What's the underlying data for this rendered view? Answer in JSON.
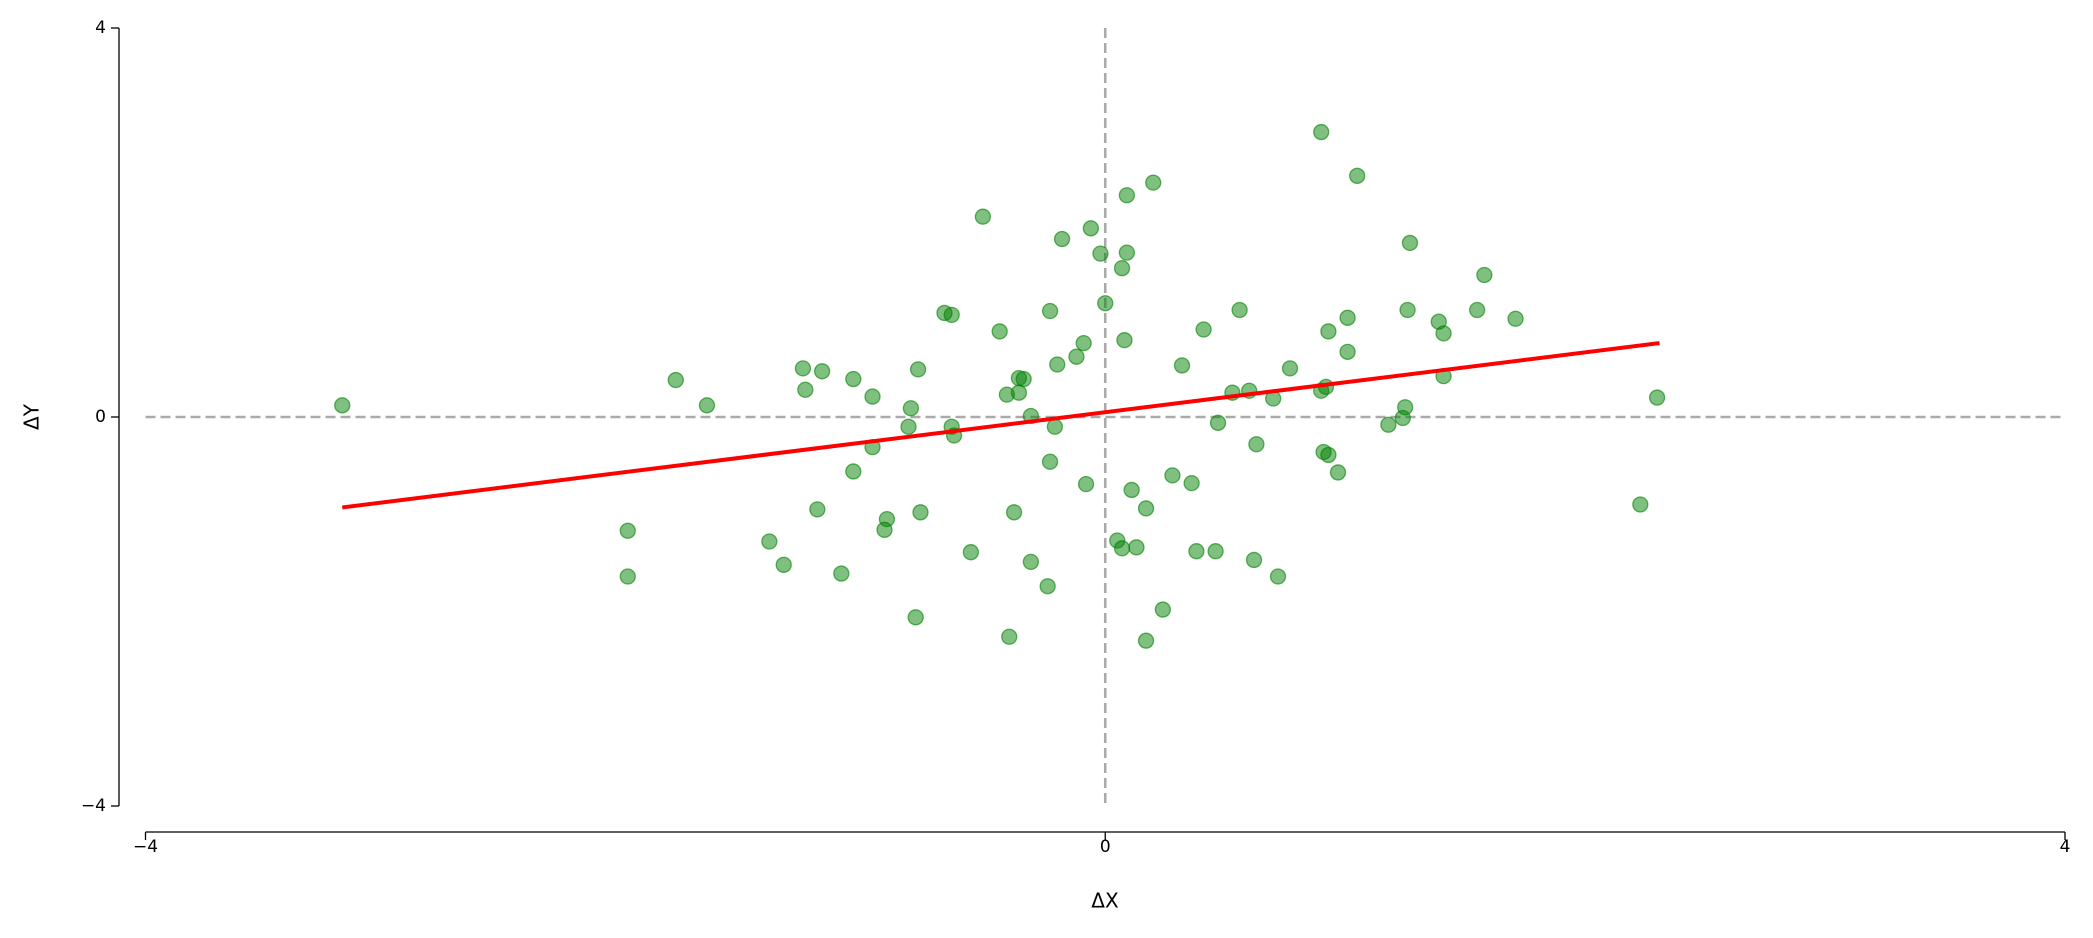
{
  "chart_data": {
    "type": "scatter",
    "x_label": "ΔX",
    "y_label": "ΔY",
    "xlim": [
      -4,
      4
    ],
    "ylim": [
      -4,
      4
    ],
    "xticks": [
      {
        "value": -4,
        "label": "−4"
      },
      0,
      4
    ],
    "yticks": [
      {
        "value": -4,
        "label": "−4"
      },
      0,
      4
    ],
    "hlines": [
      0
    ],
    "vlines": [
      0
    ],
    "reference_color": "#aaaaaa",
    "color": "green",
    "x": [
      -3.18,
      -1.79,
      -1.66,
      -1.99,
      -1.99,
      -1.4,
      -1.34,
      -1.26,
      -1.25,
      -1.18,
      -1.2,
      -1.1,
      -1.05,
      -1.05,
      -0.97,
      -0.97,
      -0.91,
      -0.92,
      -0.81,
      -0.82,
      -0.78,
      -0.77,
      -0.79,
      -0.67,
      -0.64,
      -0.64,
      -0.63,
      -0.56,
      -0.51,
      -0.44,
      -0.41,
      -0.4,
      -0.38,
      -0.36,
      -0.34,
      -0.36,
      -0.31,
      -0.31,
      -0.24,
      -0.23,
      -0.23,
      -0.21,
      -0.2,
      -0.18,
      -0.12,
      -0.09,
      -0.08,
      -0.06,
      -0.02,
      0.0,
      0.05,
      0.07,
      0.07,
      0.08,
      0.09,
      0.09,
      0.11,
      0.13,
      0.17,
      0.17,
      0.2,
      0.24,
      0.28,
      0.32,
      0.36,
      0.38,
      0.41,
      0.46,
      0.47,
      0.53,
      0.56,
      0.6,
      0.62,
      0.63,
      0.7,
      0.72,
      0.77,
      0.9,
      0.9,
      0.92,
      0.91,
      0.93,
      0.93,
      0.97,
      1.01,
      1.01,
      1.05,
      1.18,
      1.24,
      1.25,
      1.26,
      1.27,
      1.39,
      1.41,
      1.41,
      1.55,
      1.58,
      1.71,
      2.23,
      2.3
    ],
    "y": [
      0.12,
      0.38,
      0.12,
      -1.17,
      -1.64,
      -1.28,
      -1.52,
      0.5,
      0.28,
      0.47,
      -0.95,
      -1.61,
      -0.56,
      0.39,
      0.21,
      -0.31,
      -1.05,
      -1.16,
      0.09,
      -0.1,
      0.49,
      -0.98,
      -2.06,
      1.07,
      1.05,
      -0.1,
      -0.19,
      -1.39,
      2.06,
      0.88,
      0.23,
      -2.26,
      -0.98,
      0.4,
      0.39,
      0.25,
      0.01,
      -1.49,
      -1.74,
      1.09,
      -0.46,
      -0.1,
      0.54,
      1.83,
      0.62,
      0.76,
      -0.69,
      1.94,
      1.68,
      1.17,
      -1.27,
      -1.35,
      1.53,
      0.79,
      2.28,
      1.69,
      -0.75,
      -1.34,
      -0.94,
      -2.3,
      2.41,
      -1.98,
      -0.6,
      0.53,
      -0.68,
      -1.38,
      0.9,
      -1.38,
      -0.06,
      0.25,
      1.1,
      0.27,
      -1.47,
      -0.28,
      0.19,
      -1.64,
      0.5,
      2.93,
      0.27,
      0.31,
      -0.36,
      -0.39,
      0.88,
      -0.57,
      0.67,
      1.02,
      2.48,
      -0.08,
      -0.01,
      0.1,
      1.1,
      1.79,
      0.98,
      0.86,
      0.42,
      1.1,
      1.46,
      1.01,
      -0.9,
      0.2
    ],
    "fit_line": {
      "x": [
        -3.18,
        2.31
      ],
      "y": [
        -0.93,
        0.76
      ],
      "color": "red"
    }
  }
}
